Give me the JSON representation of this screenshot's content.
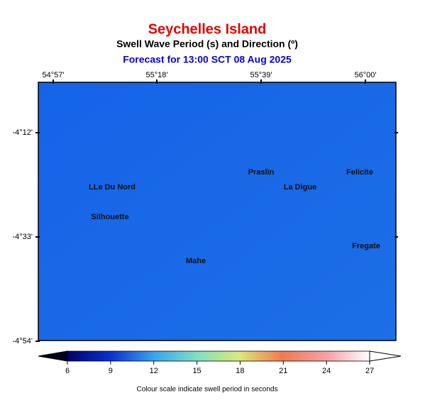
{
  "header": {
    "title": "Seychelles Island",
    "subtitle": "Swell Wave Period (s) and Direction (º)",
    "forecast": "Forecast for  13:00 SCT 08 Aug 2025"
  },
  "map": {
    "longitude_labels": [
      "54°57'",
      "55°18'",
      "55°39'",
      "56°00'"
    ],
    "latitude_labels": [
      "-4°12'",
      "-4°33'",
      "-4°54'"
    ],
    "places": [
      "Praslin",
      "Felicite",
      "LLe Du Nord",
      "La Digue",
      "Silhouette",
      "Fregate",
      "Mahe"
    ]
  },
  "colorbar": {
    "ticks": [
      6,
      9,
      12,
      15,
      18,
      21,
      24,
      27
    ],
    "caption": "Colour scale indicate swell period in seconds"
  }
}
